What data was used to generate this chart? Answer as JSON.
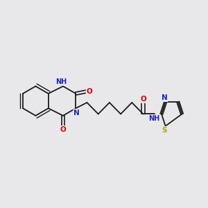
{
  "bg_color": "#e8e8eb",
  "bond_color": "#1a1a1a",
  "atom_colors": {
    "N": "#2020cc",
    "O": "#dd0000",
    "S": "#aaaa00",
    "H": "#507090",
    "C": "#1a1a1a"
  },
  "font_size": 7.5,
  "fig_size": [
    3.0,
    3.0
  ],
  "dpi": 100
}
